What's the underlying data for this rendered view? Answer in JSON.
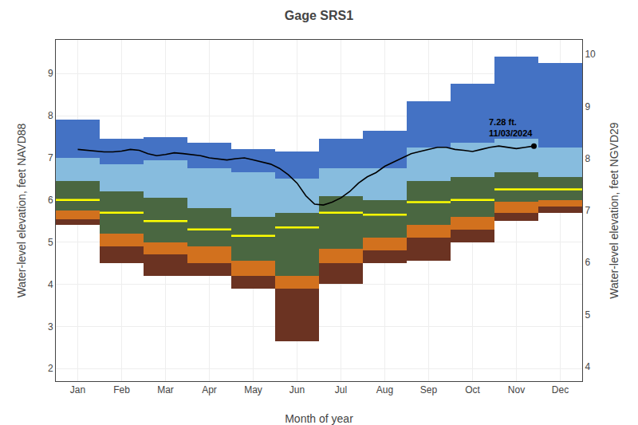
{
  "chart_data": {
    "type": "percentile_bands",
    "title": "Gage SRS1",
    "xlabel": "Month of year",
    "ylabel": "Water-level elevation, feet NAVD88",
    "y2label": "Water-level elevation, feet NGVD29",
    "xlim": [
      0,
      12
    ],
    "xticks": [
      {
        "value": 0.5,
        "label": "Jan"
      },
      {
        "value": 1.5,
        "label": "Feb"
      },
      {
        "value": 2.5,
        "label": "Mar"
      },
      {
        "value": 3.5,
        "label": "Apr"
      },
      {
        "value": 4.5,
        "label": "May"
      },
      {
        "value": 5.5,
        "label": "Jun"
      },
      {
        "value": 6.5,
        "label": "Jul"
      },
      {
        "value": 7.5,
        "label": "Aug"
      },
      {
        "value": 8.5,
        "label": "Sep"
      },
      {
        "value": 9.5,
        "label": "Oct"
      },
      {
        "value": 10.5,
        "label": "Nov"
      },
      {
        "value": 11.5,
        "label": "Dec"
      }
    ],
    "ylim": [
      1.7,
      9.8
    ],
    "yticks": [
      2,
      3,
      4,
      5,
      6,
      7,
      8,
      9
    ],
    "y2lim": [
      3.72,
      10.28
    ],
    "y2ticks": [
      4,
      5,
      6,
      7,
      8,
      9,
      10
    ],
    "grid": true,
    "series": [
      {
        "type": "band",
        "color": "#6B3322",
        "lower": [
          5.4,
          4.5,
          4.2,
          4.2,
          3.9,
          2.65,
          4.0,
          4.5,
          4.55,
          5.0,
          5.5,
          5.7
        ],
        "upper": [
          5.55,
          4.9,
          4.7,
          4.5,
          4.2,
          3.9,
          4.5,
          4.8,
          5.1,
          5.3,
          5.7,
          5.85
        ]
      },
      {
        "type": "band",
        "color": "#D2711E",
        "lower": [
          5.55,
          4.9,
          4.7,
          4.5,
          4.2,
          3.9,
          4.5,
          4.8,
          5.1,
          5.3,
          5.7,
          5.85
        ],
        "upper": [
          5.75,
          5.2,
          5.0,
          4.9,
          4.55,
          4.2,
          4.85,
          5.1,
          5.4,
          5.6,
          5.95,
          6.0
        ]
      },
      {
        "type": "band",
        "color": "#4A6741",
        "lower": [
          5.75,
          5.2,
          5.0,
          4.9,
          4.55,
          4.2,
          4.85,
          5.1,
          5.4,
          5.6,
          5.95,
          6.0
        ],
        "upper": [
          6.45,
          6.2,
          6.05,
          5.8,
          5.6,
          5.7,
          6.1,
          6.0,
          6.45,
          6.55,
          6.65,
          6.55
        ]
      },
      {
        "type": "band",
        "color": "#87BCDE",
        "lower": [
          6.45,
          6.2,
          6.05,
          5.8,
          5.6,
          5.7,
          6.1,
          6.0,
          6.45,
          6.55,
          6.65,
          6.55
        ],
        "upper": [
          7.0,
          6.85,
          6.95,
          6.75,
          6.65,
          6.5,
          6.75,
          6.75,
          7.25,
          7.35,
          7.45,
          7.25
        ]
      },
      {
        "type": "band",
        "color": "#4472C4",
        "lower": [
          7.0,
          6.85,
          6.95,
          6.75,
          6.65,
          6.5,
          6.75,
          6.75,
          7.25,
          7.35,
          7.45,
          7.25
        ],
        "upper": [
          7.9,
          7.45,
          7.5,
          7.35,
          7.2,
          7.15,
          7.45,
          7.65,
          8.35,
          8.75,
          9.4,
          9.25
        ]
      },
      {
        "type": "level",
        "color": "#FFFF00",
        "values": [
          6.0,
          5.7,
          5.5,
          5.3,
          5.15,
          5.35,
          5.7,
          5.65,
          5.95,
          6.0,
          6.25,
          6.25
        ]
      },
      {
        "type": "line",
        "color": "black",
        "x": [
          0.5,
          0.7,
          0.9,
          1.1,
          1.3,
          1.5,
          1.7,
          1.9,
          2.1,
          2.3,
          2.5,
          2.7,
          2.9,
          3.1,
          3.3,
          3.5,
          3.7,
          3.9,
          4.1,
          4.3,
          4.5,
          4.7,
          4.9,
          5.1,
          5.3,
          5.5,
          5.7,
          5.9,
          6.1,
          6.3,
          6.5,
          6.7,
          6.9,
          7.1,
          7.3,
          7.5,
          7.7,
          7.9,
          8.1,
          8.3,
          8.5,
          8.7,
          8.9,
          9.1,
          9.3,
          9.5,
          9.7,
          9.9,
          10.1,
          10.3,
          10.5,
          10.7,
          10.9
        ],
        "values": [
          7.2,
          7.18,
          7.16,
          7.14,
          7.14,
          7.16,
          7.2,
          7.18,
          7.1,
          7.05,
          7.08,
          7.12,
          7.1,
          7.08,
          7.05,
          7.0,
          6.98,
          6.95,
          6.98,
          7.0,
          6.95,
          6.9,
          6.85,
          6.75,
          6.6,
          6.4,
          6.1,
          5.9,
          5.88,
          5.95,
          6.05,
          6.2,
          6.4,
          6.55,
          6.65,
          6.8,
          6.9,
          7.0,
          7.1,
          7.15,
          7.2,
          7.25,
          7.25,
          7.2,
          7.18,
          7.15,
          7.2,
          7.25,
          7.28,
          7.25,
          7.22,
          7.25,
          7.28
        ]
      },
      {
        "type": "scatter",
        "marker": "circle",
        "color": "black",
        "x": [
          10.9
        ],
        "values": [
          7.28
        ]
      }
    ],
    "annotations": [
      {
        "text": "7.28 ft.\n11/03/2024",
        "x": 10.9,
        "y": 7.28
      }
    ]
  }
}
